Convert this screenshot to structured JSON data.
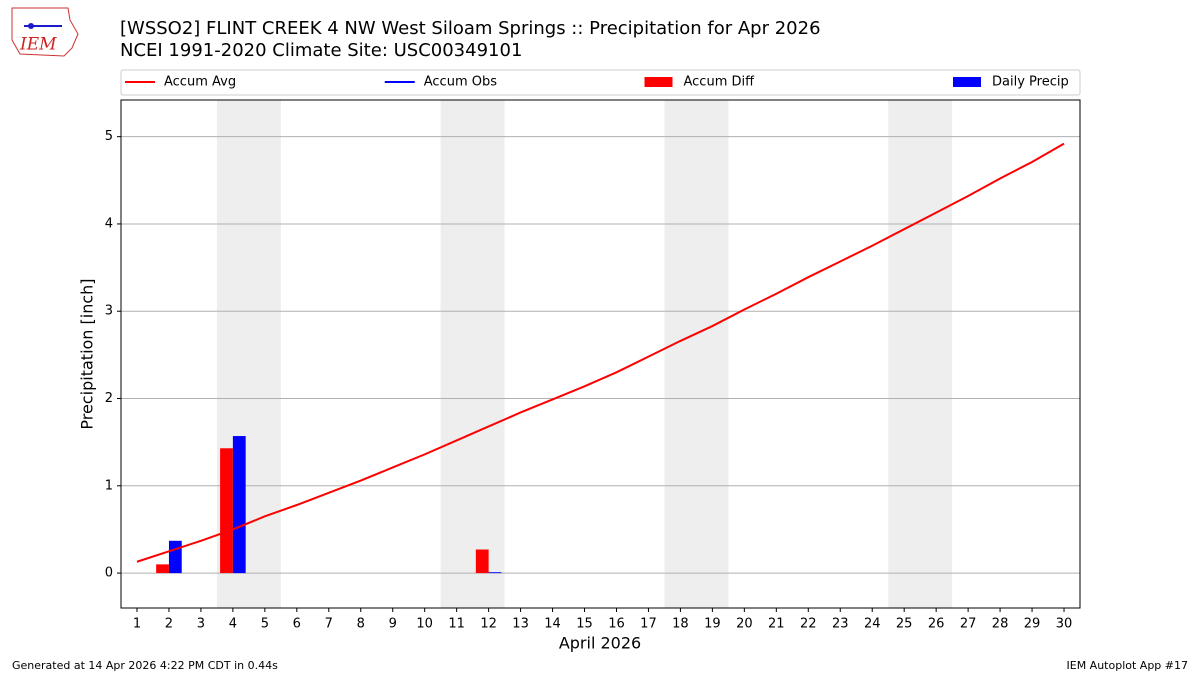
{
  "chart_data": {
    "type": "bar_line",
    "title": "[WSSO2] FLINT CREEK 4 NW West Siloam Springs :: Precipitation for Apr 2026",
    "subtitle": "NCEI 1991-2020 Climate Site: USC00349101",
    "xlabel": "April 2026",
    "ylabel": "Precipitation [inch]",
    "x": [
      1,
      2,
      3,
      4,
      5,
      6,
      7,
      8,
      9,
      10,
      11,
      12,
      13,
      14,
      15,
      16,
      17,
      18,
      19,
      20,
      21,
      22,
      23,
      24,
      25,
      26,
      27,
      28,
      29,
      30
    ],
    "series": [
      {
        "name": "Accum Avg",
        "kind": "line",
        "color": "#ff0000",
        "values": [
          0.13,
          0.25,
          0.37,
          0.5,
          0.65,
          0.78,
          0.92,
          1.06,
          1.21,
          1.36,
          1.52,
          1.68,
          1.84,
          1.99,
          2.14,
          2.3,
          2.48,
          2.66,
          2.83,
          3.02,
          3.2,
          3.39,
          3.57,
          3.75,
          3.94,
          4.13,
          4.32,
          4.52,
          4.71,
          4.92
        ]
      },
      {
        "name": "Accum Obs",
        "kind": "line",
        "color": "#0000ff",
        "values": [
          null,
          null,
          null,
          null,
          null,
          null,
          null,
          null,
          null,
          null,
          null,
          null,
          null,
          null,
          null,
          null,
          null,
          null,
          null,
          null,
          null,
          null,
          null,
          null,
          null,
          null,
          null,
          null,
          null,
          null
        ]
      },
      {
        "name": "Accum Diff",
        "kind": "bar",
        "color": "#ff0000",
        "values": [
          null,
          0.1,
          null,
          1.43,
          null,
          null,
          null,
          null,
          null,
          null,
          null,
          0.27,
          null,
          null,
          null,
          null,
          null,
          null,
          null,
          null,
          null,
          null,
          null,
          null,
          null,
          null,
          null,
          null,
          null,
          null
        ]
      },
      {
        "name": "Daily Precip",
        "kind": "bar",
        "color": "#0000ff",
        "values": [
          null,
          0.37,
          null,
          1.57,
          null,
          null,
          null,
          null,
          null,
          null,
          null,
          0.01,
          null,
          null,
          null,
          null,
          null,
          null,
          null,
          null,
          null,
          null,
          null,
          null,
          null,
          null,
          null,
          null,
          null,
          null
        ]
      }
    ],
    "shaded_ranges": [
      [
        3.5,
        5.5
      ],
      [
        10.5,
        12.5
      ],
      [
        17.5,
        19.5
      ],
      [
        24.5,
        26.5
      ]
    ],
    "xlim": [
      0.5,
      30.5
    ],
    "ylim": [
      -0.4,
      5.42
    ],
    "xticks": [
      1,
      2,
      3,
      4,
      5,
      6,
      7,
      8,
      9,
      10,
      11,
      12,
      13,
      14,
      15,
      16,
      17,
      18,
      19,
      20,
      21,
      22,
      23,
      24,
      25,
      26,
      27,
      28,
      29,
      30
    ],
    "yticks": [
      0,
      1,
      2,
      3,
      4,
      5
    ],
    "grid": true,
    "legend": "top"
  },
  "footer": {
    "left": "Generated at 14 Apr 2026 4:22 PM CDT in 0.44s",
    "right": "IEM Autoplot App #17"
  },
  "logo": {
    "text": "IEM"
  }
}
